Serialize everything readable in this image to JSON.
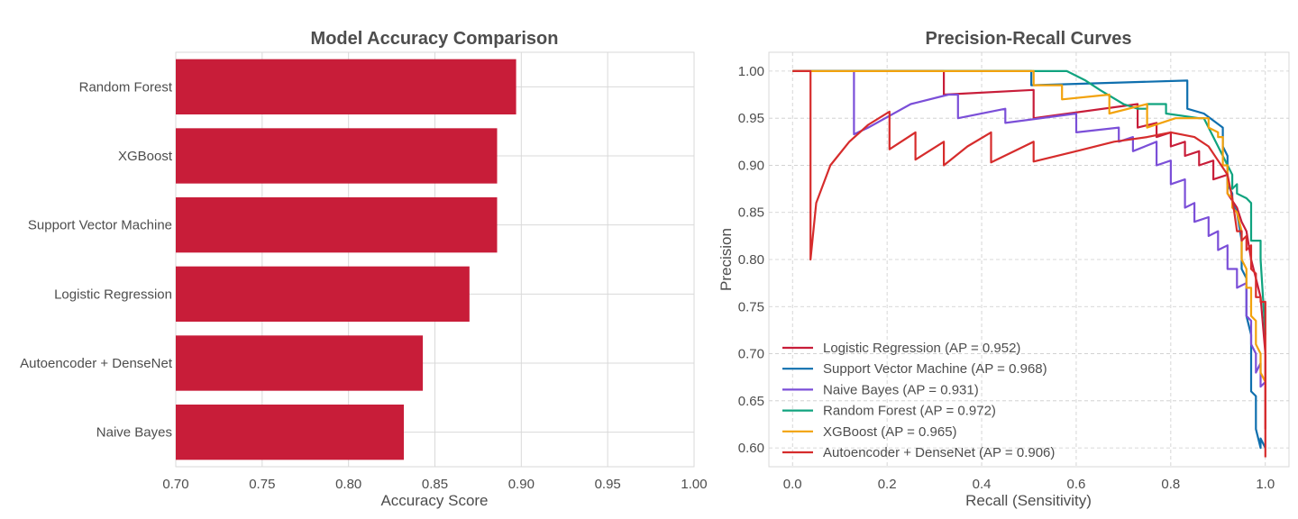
{
  "chart_data": [
    {
      "type": "bar",
      "orientation": "horizontal",
      "title": "Model Accuracy Comparison",
      "xlabel": "Accuracy Score",
      "ylabel": "",
      "xlim": [
        0.7,
        1.0
      ],
      "xticks": [
        "0.70",
        "0.75",
        "0.80",
        "0.85",
        "0.90",
        "0.95",
        "1.00"
      ],
      "grid": true,
      "bar_color": "#c81d39",
      "categories": [
        "Random Forest",
        "XGBoost",
        "Support Vector Machine",
        "Logistic Regression",
        "Autoencoder + DenseNet",
        "Naive Bayes"
      ],
      "values": [
        0.897,
        0.886,
        0.886,
        0.87,
        0.843,
        0.832
      ]
    },
    {
      "type": "line",
      "title": "Precision-Recall Curves",
      "xlabel": "Recall (Sensitivity)",
      "ylabel": "Precision",
      "xlim": [
        -0.05,
        1.05
      ],
      "ylim": [
        0.58,
        1.02
      ],
      "xticks": [
        "0.0",
        "0.2",
        "0.4",
        "0.6",
        "0.8",
        "1.0"
      ],
      "yticks": [
        "0.60",
        "0.65",
        "0.70",
        "0.75",
        "0.80",
        "0.85",
        "0.90",
        "0.95",
        "1.00"
      ],
      "grid": true,
      "legend_position": "lower-left",
      "series": [
        {
          "name": "Logistic Regression (AP = 0.952)",
          "color": "#c81d39",
          "points": [
            [
              0,
              1.0
            ],
            [
              0.32,
              1.0
            ],
            [
              0.32,
              0.975
            ],
            [
              0.51,
              0.98
            ],
            [
              0.51,
              0.95
            ],
            [
              0.73,
              0.965
            ],
            [
              0.73,
              0.94
            ],
            [
              0.77,
              0.945
            ],
            [
              0.77,
              0.93
            ],
            [
              0.8,
              0.935
            ],
            [
              0.8,
              0.92
            ],
            [
              0.83,
              0.925
            ],
            [
              0.83,
              0.91
            ],
            [
              0.86,
              0.915
            ],
            [
              0.86,
              0.9
            ],
            [
              0.89,
              0.905
            ],
            [
              0.89,
              0.885
            ],
            [
              0.92,
              0.89
            ],
            [
              0.92,
              0.87
            ],
            [
              0.94,
              0.855
            ],
            [
              0.95,
              0.84
            ],
            [
              0.96,
              0.83
            ],
            [
              0.97,
              0.8
            ],
            [
              0.98,
              0.78
            ],
            [
              0.99,
              0.76
            ],
            [
              1.0,
              0.7
            ],
            [
              1.0,
              0.62
            ]
          ]
        },
        {
          "name": "Support Vector Machine (AP = 0.968)",
          "color": "#0f6fae",
          "points": [
            [
              0,
              1.0
            ],
            [
              0.505,
              1.0
            ],
            [
              0.505,
              0.985
            ],
            [
              0.835,
              0.99
            ],
            [
              0.835,
              0.96
            ],
            [
              0.87,
              0.955
            ],
            [
              0.91,
              0.94
            ],
            [
              0.91,
              0.92
            ],
            [
              0.92,
              0.91
            ],
            [
              0.92,
              0.88
            ],
            [
              0.93,
              0.87
            ],
            [
              0.93,
              0.86
            ],
            [
              0.94,
              0.85
            ],
            [
              0.95,
              0.82
            ],
            [
              0.95,
              0.79
            ],
            [
              0.96,
              0.78
            ],
            [
              0.96,
              0.74
            ],
            [
              0.97,
              0.72
            ],
            [
              0.97,
              0.66
            ],
            [
              0.98,
              0.655
            ],
            [
              0.98,
              0.62
            ],
            [
              0.99,
              0.6
            ],
            [
              0.99,
              0.61
            ],
            [
              1.0,
              0.6
            ]
          ]
        },
        {
          "name": "Naive Bayes (AP = 0.931)",
          "color": "#7b4fd8",
          "points": [
            [
              0,
              1.0
            ],
            [
              0.13,
              1.0
            ],
            [
              0.13,
              0.933
            ],
            [
              0.16,
              0.94
            ],
            [
              0.25,
              0.965
            ],
            [
              0.33,
              0.975
            ],
            [
              0.35,
              0.975
            ],
            [
              0.35,
              0.95
            ],
            [
              0.45,
              0.96
            ],
            [
              0.45,
              0.945
            ],
            [
              0.6,
              0.955
            ],
            [
              0.6,
              0.935
            ],
            [
              0.69,
              0.94
            ],
            [
              0.69,
              0.925
            ],
            [
              0.72,
              0.93
            ],
            [
              0.72,
              0.915
            ],
            [
              0.77,
              0.925
            ],
            [
              0.77,
              0.9
            ],
            [
              0.8,
              0.905
            ],
            [
              0.8,
              0.88
            ],
            [
              0.83,
              0.885
            ],
            [
              0.83,
              0.855
            ],
            [
              0.85,
              0.86
            ],
            [
              0.85,
              0.84
            ],
            [
              0.88,
              0.845
            ],
            [
              0.88,
              0.825
            ],
            [
              0.9,
              0.83
            ],
            [
              0.9,
              0.81
            ],
            [
              0.92,
              0.815
            ],
            [
              0.92,
              0.79
            ],
            [
              0.94,
              0.79
            ],
            [
              0.94,
              0.77
            ],
            [
              0.96,
              0.775
            ],
            [
              0.96,
              0.74
            ],
            [
              0.97,
              0.735
            ],
            [
              0.97,
              0.71
            ],
            [
              0.98,
              0.7
            ],
            [
              0.98,
              0.68
            ],
            [
              0.99,
              0.69
            ],
            [
              0.99,
              0.665
            ],
            [
              1.0,
              0.67
            ]
          ]
        },
        {
          "name": "Random Forest (AP = 0.972)",
          "color": "#10a37f",
          "points": [
            [
              0,
              1.0
            ],
            [
              0.58,
              1.0
            ],
            [
              0.62,
              0.99
            ],
            [
              0.65,
              0.98
            ],
            [
              0.7,
              0.965
            ],
            [
              0.73,
              0.96
            ],
            [
              0.75,
              0.96
            ],
            [
              0.75,
              0.965
            ],
            [
              0.79,
              0.965
            ],
            [
              0.79,
              0.955
            ],
            [
              0.86,
              0.95
            ],
            [
              0.87,
              0.95
            ],
            [
              0.89,
              0.93
            ],
            [
              0.91,
              0.91
            ],
            [
              0.93,
              0.89
            ],
            [
              0.93,
              0.875
            ],
            [
              0.94,
              0.88
            ],
            [
              0.94,
              0.87
            ],
            [
              0.96,
              0.865
            ],
            [
              0.97,
              0.86
            ],
            [
              0.97,
              0.82
            ],
            [
              0.99,
              0.82
            ],
            [
              0.99,
              0.8
            ],
            [
              1.0,
              0.72
            ]
          ]
        },
        {
          "name": "XGBoost (AP = 0.965)",
          "color": "#f2a20c",
          "points": [
            [
              0,
              1.0
            ],
            [
              0.51,
              1.0
            ],
            [
              0.51,
              0.985
            ],
            [
              0.57,
              0.985
            ],
            [
              0.57,
              0.97
            ],
            [
              0.67,
              0.975
            ],
            [
              0.67,
              0.955
            ],
            [
              0.75,
              0.965
            ],
            [
              0.75,
              0.94
            ],
            [
              0.81,
              0.95
            ],
            [
              0.88,
              0.95
            ],
            [
              0.88,
              0.94
            ],
            [
              0.9,
              0.935
            ],
            [
              0.9,
              0.93
            ],
            [
              0.91,
              0.93
            ],
            [
              0.91,
              0.9
            ],
            [
              0.92,
              0.9
            ],
            [
              0.92,
              0.87
            ],
            [
              0.93,
              0.865
            ],
            [
              0.93,
              0.855
            ],
            [
              0.94,
              0.85
            ],
            [
              0.95,
              0.83
            ],
            [
              0.95,
              0.8
            ],
            [
              0.96,
              0.79
            ],
            [
              0.96,
              0.77
            ],
            [
              0.97,
              0.77
            ],
            [
              0.97,
              0.74
            ],
            [
              0.98,
              0.735
            ],
            [
              0.98,
              0.71
            ],
            [
              0.99,
              0.7
            ],
            [
              0.99,
              0.68
            ],
            [
              1.0,
              0.67
            ]
          ]
        },
        {
          "name": "Autoencoder + DenseNet (AP = 0.906)",
          "color": "#d62c2c",
          "points": [
            [
              0,
              1.0
            ],
            [
              0.038,
              1.0
            ],
            [
              0.038,
              0.8
            ],
            [
              0.05,
              0.86
            ],
            [
              0.08,
              0.9
            ],
            [
              0.12,
              0.925
            ],
            [
              0.16,
              0.943
            ],
            [
              0.205,
              0.957
            ],
            [
              0.205,
              0.917
            ],
            [
              0.26,
              0.935
            ],
            [
              0.26,
              0.906
            ],
            [
              0.32,
              0.925
            ],
            [
              0.32,
              0.9
            ],
            [
              0.37,
              0.92
            ],
            [
              0.42,
              0.935
            ],
            [
              0.42,
              0.903
            ],
            [
              0.51,
              0.925
            ],
            [
              0.51,
              0.904
            ],
            [
              0.6,
              0.915
            ],
            [
              0.68,
              0.925
            ],
            [
              0.75,
              0.93
            ],
            [
              0.8,
              0.935
            ],
            [
              0.85,
              0.93
            ],
            [
              0.88,
              0.92
            ],
            [
              0.9,
              0.905
            ],
            [
              0.92,
              0.89
            ],
            [
              0.93,
              0.865
            ],
            [
              0.94,
              0.83
            ],
            [
              0.95,
              0.83
            ],
            [
              0.95,
              0.82
            ],
            [
              0.96,
              0.825
            ],
            [
              0.96,
              0.81
            ],
            [
              0.97,
              0.815
            ],
            [
              0.97,
              0.79
            ],
            [
              0.98,
              0.785
            ],
            [
              0.98,
              0.76
            ],
            [
              0.99,
              0.76
            ],
            [
              0.99,
              0.755
            ],
            [
              1.0,
              0.755
            ],
            [
              1.0,
              0.59
            ]
          ]
        }
      ]
    }
  ]
}
